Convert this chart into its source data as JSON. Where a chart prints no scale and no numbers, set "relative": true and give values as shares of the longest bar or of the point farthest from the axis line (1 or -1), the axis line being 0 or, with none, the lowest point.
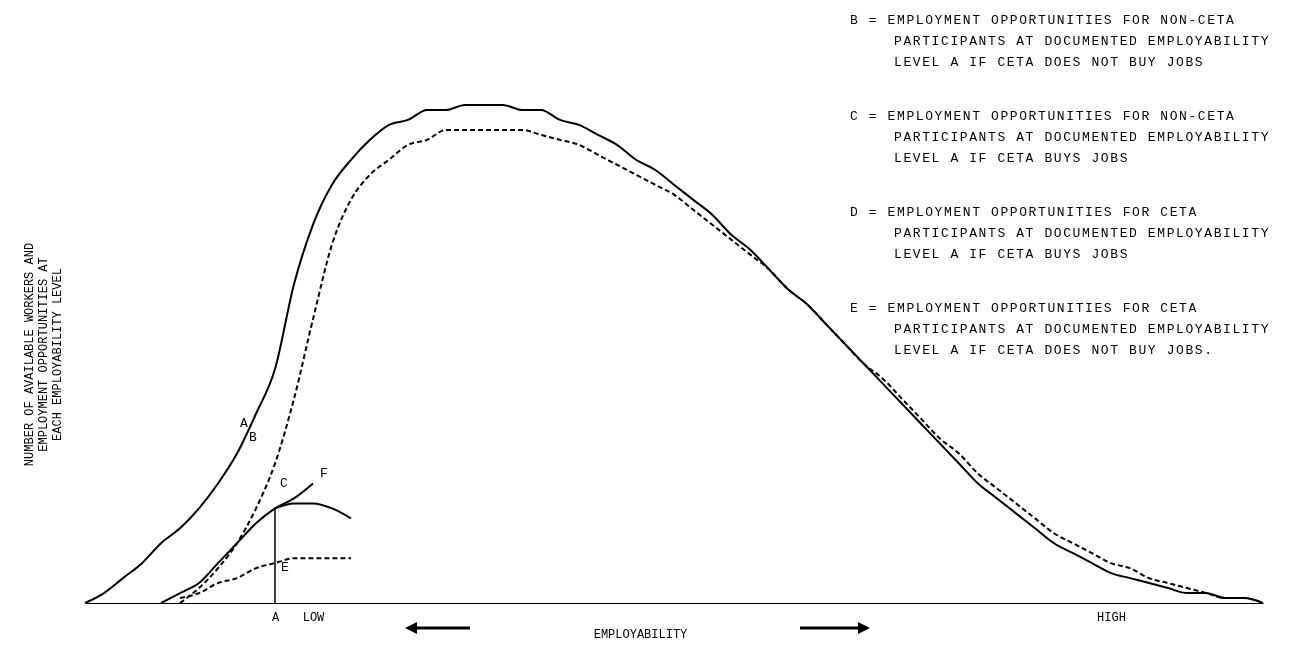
{
  "chart_data": {
    "type": "line",
    "relative": true,
    "xlabel": "EMPLOYABILITY",
    "ylabel": "NUMBER OF AVAILABLE WORKERS AND\nEMPLOYMENT OPPORTUNITIES AT\nEACH EMPLOYABILITY LEVEL",
    "categories": [
      null,
      null,
      null,
      null,
      null,
      null,
      null,
      null,
      null,
      null,
      "A",
      null,
      "LOW",
      null,
      null,
      null,
      null,
      null,
      null,
      null,
      null,
      null,
      null,
      null,
      null,
      null,
      null,
      null,
      null,
      null,
      null,
      null,
      null,
      null,
      null,
      null,
      null,
      null,
      null,
      null,
      null,
      null,
      null,
      null,
      null,
      null,
      null,
      null,
      null,
      null,
      null,
      null,
      null,
      null,
      "HIGH",
      null,
      null,
      null,
      null,
      null,
      null,
      null,
      null
    ],
    "series": [
      {
        "color": "#000000",
        "line_style": "solid",
        "values": [
          0,
          0.02,
          0.05,
          0.08,
          0.12,
          0.15,
          0.19,
          0.24,
          0.3,
          0.38,
          0.47,
          0.64,
          0.76,
          0.84,
          0.89,
          0.93,
          0.96,
          0.97,
          0.99,
          0.99,
          1,
          1,
          1,
          0.99,
          0.99,
          0.97,
          0.96,
          0.94,
          0.92,
          0.89,
          0.87,
          0.84,
          0.81,
          0.78,
          0.74,
          0.71,
          0.67,
          0.63,
          0.6,
          0.56,
          0.52,
          0.48,
          0.44,
          0.4,
          0.36,
          0.32,
          0.28,
          0.24,
          0.21,
          0.18,
          0.15,
          0.12,
          0.1,
          0.08,
          0.06,
          0.05,
          0.04,
          0.03,
          0.02,
          0.02,
          0.01,
          0.01,
          0
        ]
      },
      {
        "color": "#000000",
        "line_style": "dashed",
        "values": [
          null,
          null,
          null,
          null,
          null,
          0,
          0.03,
          0.07,
          0.12,
          0.19,
          0.28,
          0.41,
          0.57,
          0.72,
          0.81,
          0.86,
          0.89,
          0.92,
          0.93,
          0.95,
          0.95,
          0.95,
          0.95,
          0.95,
          0.94,
          0.93,
          0.92,
          0.9,
          0.88,
          0.86,
          0.84,
          0.82,
          0.79,
          0.76,
          0.73,
          0.7,
          0.67,
          0.63,
          0.6,
          0.56,
          0.52,
          0.48,
          0.45,
          0.41,
          0.37,
          0.33,
          0.3,
          0.26,
          0.23,
          0.2,
          0.17,
          0.14,
          0.12,
          0.1,
          0.08,
          0.07,
          0.05,
          0.04,
          0.03,
          0.02,
          0.01,
          0.01,
          0
        ]
      },
      {
        "color": "#000000",
        "line_style": "solid",
        "values": [
          null,
          null,
          null,
          null,
          0,
          0.02,
          0.04,
          0.08,
          0.12,
          0.16,
          0.19,
          0.21,
          0.24,
          null,
          null,
          null,
          null,
          null,
          null,
          null,
          null,
          null,
          null,
          null,
          null,
          null,
          null,
          null,
          null,
          null,
          null,
          null,
          null,
          null,
          null,
          null,
          null,
          null,
          null,
          null,
          null,
          null,
          null,
          null,
          null,
          null,
          null,
          null,
          null,
          null,
          null,
          null,
          null,
          null,
          null,
          null,
          null,
          null,
          null,
          null,
          null,
          null,
          null
        ]
      },
      {
        "color": "#000000",
        "line_style": "solid",
        "values": [
          null,
          null,
          null,
          null,
          null,
          null,
          null,
          null,
          null,
          null,
          0.19,
          0.2,
          0.2,
          0.19,
          0.17,
          null,
          null,
          null,
          null,
          null,
          null,
          null,
          null,
          null,
          null,
          null,
          null,
          null,
          null,
          null,
          null,
          null,
          null,
          null,
          null,
          null,
          null,
          null,
          null,
          null,
          null,
          null,
          null,
          null,
          null,
          null,
          null,
          null,
          null,
          null,
          null,
          null,
          null,
          null,
          null,
          null,
          null,
          null,
          null,
          null,
          null,
          null,
          null
        ]
      },
      {
        "color": "#000000",
        "line_style": "dashed",
        "values": [
          null,
          null,
          null,
          null,
          null,
          0.01,
          0.02,
          0.04,
          0.05,
          0.07,
          0.08,
          0.09,
          0.09,
          0.09,
          0.09,
          null,
          null,
          null,
          null,
          null,
          null,
          null,
          null,
          null,
          null,
          null,
          null,
          null,
          null,
          null,
          null,
          null,
          null,
          null,
          null,
          null,
          null,
          null,
          null,
          null,
          null,
          null,
          null,
          null,
          null,
          null,
          null,
          null,
          null,
          null,
          null,
          null,
          null,
          null,
          null,
          null,
          null,
          null,
          null,
          null,
          null,
          null,
          null
        ]
      }
    ],
    "ref_lines": [
      {
        "axis": "x",
        "value": "A",
        "color": "#000000"
      }
    ],
    "annotations": [
      "A",
      "B",
      "C",
      "E",
      "F",
      "B = EMPLOYMENT OPPORTUNITIES FOR NON-CETA PARTICIPANTS AT DOCUMENTED EMPLOYABILITY LEVEL A IF CETA DOES NOT BUY JOBS",
      "C = EMPLOYMENT OPPORTUNITIES FOR NON-CETA PARTICIPANTS AT DOCUMENTED EMPLOYABILITY LEVEL A IF CETA BUYS JOBS",
      "D = EMPLOYMENT OPPORTUNITIES FOR CETA PARTICIPANTS AT DOCUMENTED EMPLOYABILITY LEVEL A IF CETA BUYS JOBS",
      "E = EMPLOYMENT OPPORTUNITIES FOR CETA PARTICIPANTS AT DOCUMENTED EMPLOYABILITY LEVEL A IF CETA DOES NOT BUY JOBS."
    ]
  }
}
